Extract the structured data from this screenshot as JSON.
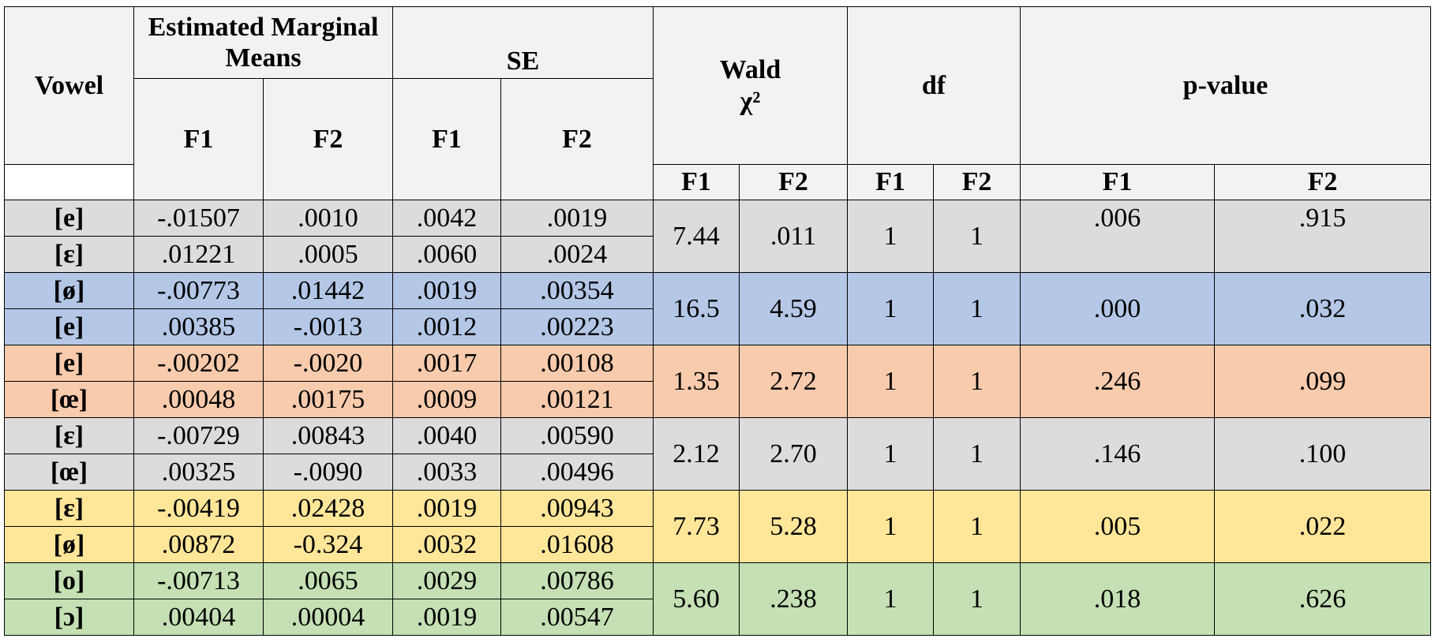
{
  "table": {
    "headers": {
      "vowel": "Vowel",
      "emm": "Estimated Marginal Means",
      "se": "SE",
      "wald": "Wald",
      "wald_symbol": "χ²",
      "df": "df",
      "pvalue": "p-value",
      "f1": "F1",
      "f2": "F2"
    },
    "groups": [
      {
        "color": "#dcdcdc",
        "rows": [
          {
            "vowel": "[e]",
            "emm_f1": "-.01507",
            "emm_f2": ".0010",
            "se_f1": ".0042",
            "se_f2": ".0019"
          },
          {
            "vowel": "[ɛ]",
            "emm_f1": ".01221",
            "emm_f2": ".0005",
            "se_f1": ".0060",
            "se_f2": ".0024"
          }
        ],
        "wald_f1": "7.44",
        "wald_f2": ".011",
        "df_f1": "1",
        "df_f2": "1",
        "p_f1": ".006",
        "p_f2": ".915"
      },
      {
        "color": "#b4c7e7",
        "rows": [
          {
            "vowel": "[ø]",
            "emm_f1": "-.00773",
            "emm_f2": ".01442",
            "se_f1": ".0019",
            "se_f2": ".00354"
          },
          {
            "vowel": "[e]",
            "emm_f1": ".00385",
            "emm_f2": "-.0013",
            "se_f1": ".0012",
            "se_f2": ".00223"
          }
        ],
        "wald_f1": "16.5",
        "wald_f2": "4.59",
        "df_f1": "1",
        "df_f2": "1",
        "p_f1": ".000",
        "p_f2": ".032"
      },
      {
        "color": "#f8cbad",
        "rows": [
          {
            "vowel": "[e]",
            "emm_f1": "-.00202",
            "emm_f2": "-.0020",
            "se_f1": ".0017",
            "se_f2": ".00108"
          },
          {
            "vowel": "[œ]",
            "emm_f1": ".00048",
            "emm_f2": ".00175",
            "se_f1": ".0009",
            "se_f2": ".00121"
          }
        ],
        "wald_f1": "1.35",
        "wald_f2": "2.72",
        "df_f1": "1",
        "df_f2": "1",
        "p_f1": ".246",
        "p_f2": ".099"
      },
      {
        "color": "#dcdcdc",
        "rows": [
          {
            "vowel": "[ɛ]",
            "emm_f1": "-.00729",
            "emm_f2": ".00843",
            "se_f1": ".0040",
            "se_f2": ".00590"
          },
          {
            "vowel": "[œ]",
            "emm_f1": ".00325",
            "emm_f2": "-.0090",
            "se_f1": ".0033",
            "se_f2": ".00496"
          }
        ],
        "wald_f1": "2.12",
        "wald_f2": "2.70",
        "df_f1": "1",
        "df_f2": "1",
        "p_f1": ".146",
        "p_f2": ".100"
      },
      {
        "color": "#ffe699",
        "rows": [
          {
            "vowel": "[ɛ]",
            "emm_f1": "-.00419",
            "emm_f2": ".02428",
            "se_f1": ".0019",
            "se_f2": ".00943"
          },
          {
            "vowel": "[ø]",
            "emm_f1": ".00872",
            "emm_f2": "-0.324",
            "se_f1": ".0032",
            "se_f2": ".01608"
          }
        ],
        "wald_f1": "7.73",
        "wald_f2": "5.28",
        "df_f1": "1",
        "df_f2": "1",
        "p_f1": ".005",
        "p_f2": ".022"
      },
      {
        "color": "#c5e0b4",
        "rows": [
          {
            "vowel": "[o]",
            "emm_f1": "-.00713",
            "emm_f2": ".0065",
            "se_f1": ".0029",
            "se_f2": ".00786"
          },
          {
            "vowel": "[ɔ]",
            "emm_f1": ".00404",
            "emm_f2": ".00004",
            "se_f1": ".0019",
            "se_f2": ".00547"
          }
        ],
        "wald_f1": "5.60",
        "wald_f2": ".238",
        "df_f1": "1",
        "df_f2": "1",
        "p_f1": ".018",
        "p_f2": ".626"
      }
    ]
  }
}
